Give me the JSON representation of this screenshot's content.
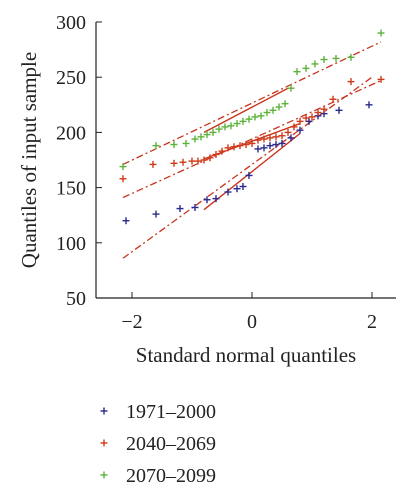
{
  "chart_data": {
    "type": "scatter",
    "xlabel": "Standard normal quantiles",
    "ylabel": "Quantiles of input sample",
    "xlim": [
      -2.6,
      2.4
    ],
    "ylim": [
      50,
      300
    ],
    "xticks": [
      -2,
      0,
      2
    ],
    "yticks": [
      50,
      100,
      150,
      200,
      250,
      300
    ],
    "xtick_labels": [
      "−2",
      "0",
      "2"
    ],
    "ytick_labels": [
      "50",
      "100",
      "150",
      "200",
      "250",
      "300"
    ],
    "grid": false,
    "legend_position": "bottom",
    "series": [
      {
        "name": "1971–2000",
        "color": "#2a2a8c",
        "marker": "plus",
        "x": [
          -2.1,
          -1.6,
          -1.2,
          -0.95,
          -0.75,
          -0.6,
          -0.4,
          -0.25,
          -0.15,
          -0.05,
          0.1,
          0.2,
          0.3,
          0.4,
          0.5,
          0.65,
          0.8,
          0.95,
          1.1,
          1.2,
          1.45,
          1.95
        ],
        "y": [
          120,
          126,
          131,
          132,
          139,
          140,
          146,
          149,
          151,
          161,
          185,
          186,
          188,
          189,
          190,
          195,
          202,
          210,
          215,
          217,
          220,
          225
        ]
      },
      {
        "name": "2040–2069",
        "color": "#d03a1a",
        "marker": "plus",
        "x": [
          -2.15,
          -1.65,
          -1.3,
          -1.15,
          -1.0,
          -0.9,
          -0.8,
          -0.7,
          -0.6,
          -0.5,
          -0.4,
          -0.3,
          -0.2,
          -0.1,
          0.0,
          0.1,
          0.2,
          0.3,
          0.4,
          0.5,
          0.6,
          0.7,
          0.8,
          0.9,
          1.0,
          1.1,
          1.2,
          1.35,
          1.65,
          2.15
        ],
        "y": [
          158,
          171,
          172,
          173,
          174,
          174,
          175,
          177,
          180,
          183,
          186,
          187,
          188,
          189,
          190,
          193,
          194,
          195,
          196,
          197,
          200,
          205,
          210,
          213,
          214,
          218,
          221,
          230,
          246,
          248
        ]
      },
      {
        "name": "2070–2099",
        "color": "#5db33a",
        "marker": "plus",
        "x": [
          -2.15,
          -1.6,
          -1.3,
          -1.1,
          -0.95,
          -0.85,
          -0.75,
          -0.65,
          -0.55,
          -0.45,
          -0.35,
          -0.25,
          -0.15,
          -0.05,
          0.05,
          0.15,
          0.25,
          0.35,
          0.45,
          0.55,
          0.65,
          0.75,
          0.9,
          1.05,
          1.2,
          1.4,
          1.65,
          2.15
        ],
        "y": [
          169,
          188,
          189,
          190,
          194,
          196,
          198,
          200,
          203,
          205,
          206,
          208,
          210,
          212,
          214,
          215,
          218,
          220,
          223,
          226,
          240,
          255,
          258,
          262,
          266,
          267,
          268,
          290
        ]
      }
    ],
    "reference_lines": [
      {
        "series": "1971–2000",
        "color": "#c8341c",
        "solid": [
          [
            -0.8,
            130
          ],
          [
            0.8,
            199
          ]
        ],
        "dashed": [
          [
            -2.15,
            86
          ],
          [
            2.0,
            250
          ]
        ]
      },
      {
        "series": "2040–2069",
        "color": "#c8341c",
        "solid": [
          [
            -0.8,
            176
          ],
          [
            0.8,
            208
          ]
        ],
        "dashed": [
          [
            -2.15,
            141
          ],
          [
            2.15,
            247
          ]
        ]
      },
      {
        "series": "2070–2099",
        "color": "#c8341c",
        "solid": [
          [
            -0.8,
            200
          ],
          [
            0.6,
            240
          ]
        ],
        "dashed": [
          [
            -2.15,
            171
          ],
          [
            2.15,
            282
          ]
        ]
      }
    ]
  }
}
